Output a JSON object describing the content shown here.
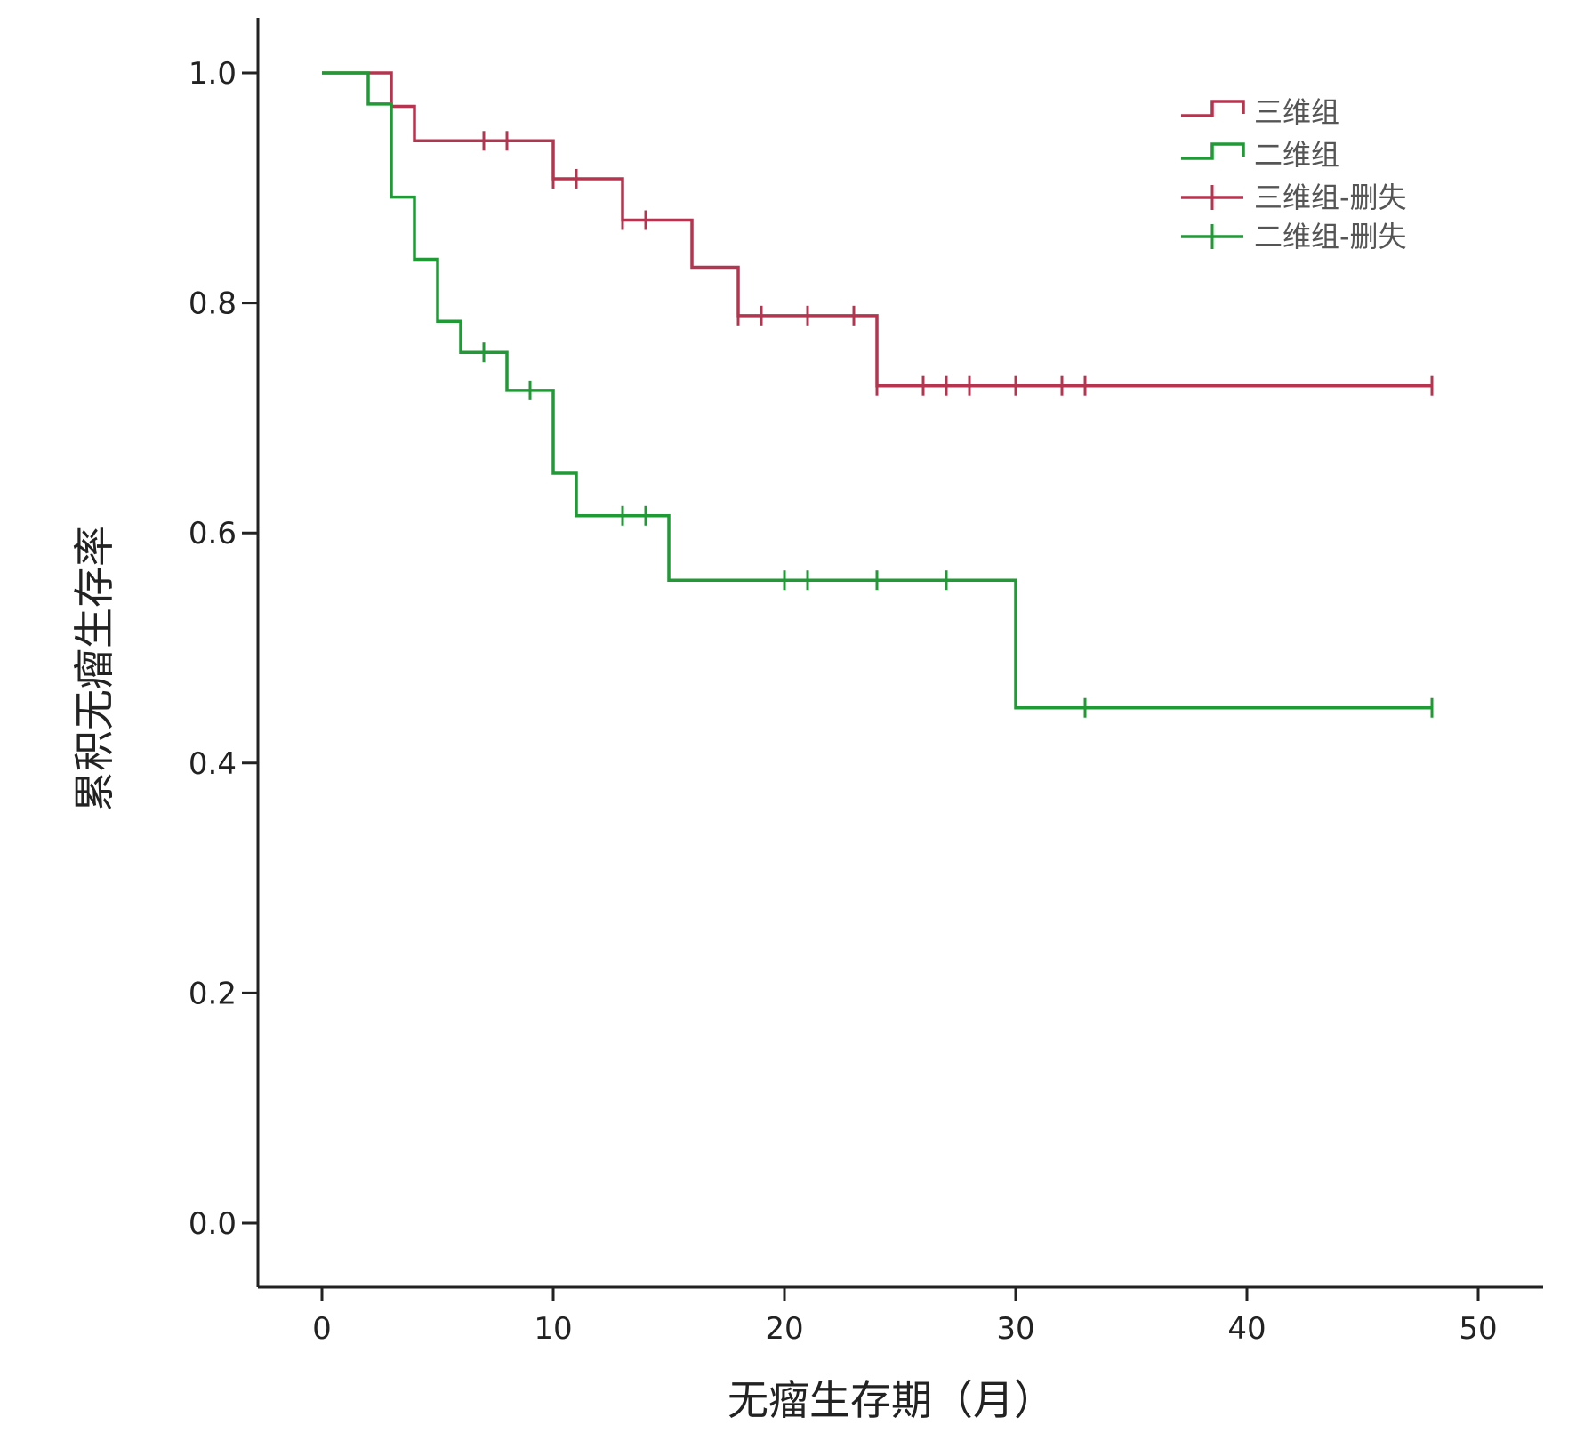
{
  "chart_data": {
    "type": "line",
    "subtype": "kaplan-meier step",
    "xlabel": "无瘤生存期（月）",
    "ylabel": "累积无瘤生存率",
    "xlim": [
      -2.5,
      52.5
    ],
    "ylim": [
      -0.05,
      1.05
    ],
    "xticks": [
      "0",
      "10",
      "20",
      "30",
      "40",
      "50"
    ],
    "yticks": [
      "0.0",
      "0.2",
      "0.4",
      "0.6",
      "0.8",
      "1.0"
    ],
    "legend_position": "top-right",
    "legend": [
      "三维组",
      "二维组",
      "三维组-删失",
      "二维组-删失"
    ],
    "colors": {
      "三维组": "#b5344f",
      "二维组": "#1f9a35"
    },
    "series": [
      {
        "name": "三维组",
        "steps": [
          [
            0,
            1.0
          ],
          [
            3,
            0.971
          ],
          [
            4,
            0.941
          ],
          [
            10,
            0.908
          ],
          [
            13,
            0.872
          ],
          [
            16,
            0.831
          ],
          [
            18,
            0.789
          ],
          [
            24,
            0.728
          ],
          [
            48,
            0.728
          ]
        ],
        "censored": [
          [
            7,
            0.941
          ],
          [
            8,
            0.941
          ],
          [
            10,
            0.908
          ],
          [
            11,
            0.908
          ],
          [
            13,
            0.872
          ],
          [
            14,
            0.872
          ],
          [
            18,
            0.789
          ],
          [
            19,
            0.789
          ],
          [
            21,
            0.789
          ],
          [
            23,
            0.789
          ],
          [
            24,
            0.728
          ],
          [
            26,
            0.728
          ],
          [
            27,
            0.728
          ],
          [
            28,
            0.728
          ],
          [
            30,
            0.728
          ],
          [
            32,
            0.728
          ],
          [
            33,
            0.728
          ],
          [
            48,
            0.728
          ]
        ]
      },
      {
        "name": "二维组",
        "steps": [
          [
            0,
            1.0
          ],
          [
            2,
            0.973
          ],
          [
            3,
            0.892
          ],
          [
            4,
            0.838
          ],
          [
            5,
            0.784
          ],
          [
            6,
            0.757
          ],
          [
            8,
            0.724
          ],
          [
            10,
            0.652
          ],
          [
            11,
            0.615
          ],
          [
            15,
            0.559
          ],
          [
            30,
            0.448
          ],
          [
            48,
            0.448
          ]
        ],
        "censored": [
          [
            7,
            0.757
          ],
          [
            9,
            0.724
          ],
          [
            13,
            0.615
          ],
          [
            14,
            0.615
          ],
          [
            20,
            0.559
          ],
          [
            21,
            0.559
          ],
          [
            24,
            0.559
          ],
          [
            27,
            0.559
          ],
          [
            33,
            0.448
          ],
          [
            48,
            0.448
          ]
        ]
      }
    ]
  }
}
